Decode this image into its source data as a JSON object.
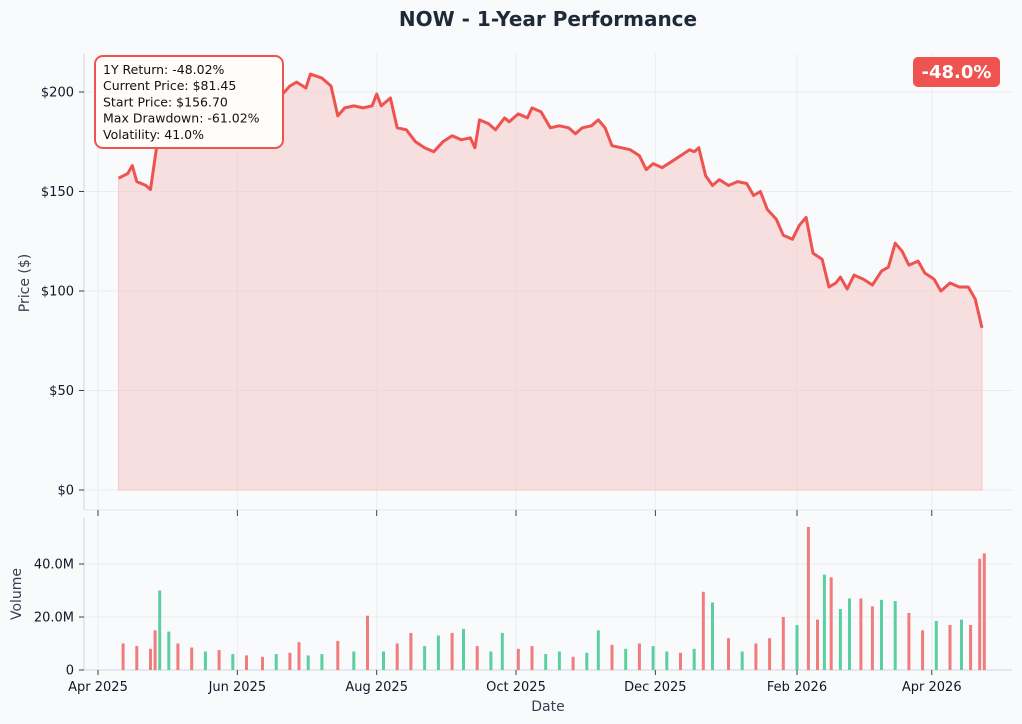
{
  "chart_data": {
    "type": "line",
    "title": "NOW - 1-Year Performance",
    "ylabel": "Price ($)",
    "xlabel": "Date",
    "volume_ylabel": "Volume",
    "price_ylim": [
      0,
      220
    ],
    "price_ticks": [
      0,
      50,
      100,
      150,
      200
    ],
    "price_tick_labels": [
      "$0",
      "$50",
      "$100",
      "$150",
      "$200"
    ],
    "volume_ylim": [
      0,
      55000000
    ],
    "volume_ticks": [
      0,
      20000000,
      40000000
    ],
    "volume_tick_labels": [
      "0",
      "20.0M",
      "40.0M"
    ],
    "x_range": [
      "2025-04-01",
      "2026-04-30"
    ],
    "x_ticks": [
      "2025-04-01",
      "2025-06-01",
      "2025-08-01",
      "2025-10-01",
      "2025-12-01",
      "2026-02-01",
      "2026-04-01"
    ],
    "x_tick_labels": [
      "Apr 2025",
      "Jun 2025",
      "Aug 2025",
      "Oct 2025",
      "Dec 2025",
      "Feb 2026",
      "Apr 2026"
    ],
    "grid": true,
    "colors": {
      "line": "#ef5350",
      "fill": "#f5c6c6",
      "up_volume": "#5ccfa0",
      "down_volume": "#f07c7c",
      "badge": "#ef5350"
    },
    "stats": [
      "1Y Return: -48.02%",
      "Current Price: $81.45",
      "Start Price: $156.70",
      "Max Drawdown: -61.02%",
      "Volatility: 41.0%"
    ],
    "badge": "-48.0%",
    "price_series": [
      {
        "date": "2025-04-10",
        "value": 156.7
      },
      {
        "date": "2025-04-14",
        "value": 159
      },
      {
        "date": "2025-04-16",
        "value": 163
      },
      {
        "date": "2025-04-18",
        "value": 155
      },
      {
        "date": "2025-04-22",
        "value": 153
      },
      {
        "date": "2025-04-24",
        "value": 151
      },
      {
        "date": "2025-04-27",
        "value": 175
      },
      {
        "date": "2025-05-01",
        "value": 186
      },
      {
        "date": "2025-05-05",
        "value": 190
      },
      {
        "date": "2025-05-08",
        "value": 196
      },
      {
        "date": "2025-05-12",
        "value": 200
      },
      {
        "date": "2025-05-15",
        "value": 202
      },
      {
        "date": "2025-05-19",
        "value": 203
      },
      {
        "date": "2025-05-22",
        "value": 201
      },
      {
        "date": "2025-05-26",
        "value": 205
      },
      {
        "date": "2025-05-30",
        "value": 206
      },
      {
        "date": "2025-06-03",
        "value": 203
      },
      {
        "date": "2025-06-07",
        "value": 198
      },
      {
        "date": "2025-06-10",
        "value": 202
      },
      {
        "date": "2025-06-12",
        "value": 199
      },
      {
        "date": "2025-06-16",
        "value": 196
      },
      {
        "date": "2025-06-20",
        "value": 198
      },
      {
        "date": "2025-06-24",
        "value": 203
      },
      {
        "date": "2025-06-27",
        "value": 205
      },
      {
        "date": "2025-07-01",
        "value": 202
      },
      {
        "date": "2025-07-03",
        "value": 209
      },
      {
        "date": "2025-07-08",
        "value": 207
      },
      {
        "date": "2025-07-12",
        "value": 203
      },
      {
        "date": "2025-07-15",
        "value": 188
      },
      {
        "date": "2025-07-18",
        "value": 192
      },
      {
        "date": "2025-07-22",
        "value": 193
      },
      {
        "date": "2025-07-26",
        "value": 192
      },
      {
        "date": "2025-07-30",
        "value": 193
      },
      {
        "date": "2025-08-01",
        "value": 199
      },
      {
        "date": "2025-08-03",
        "value": 193
      },
      {
        "date": "2025-08-07",
        "value": 197
      },
      {
        "date": "2025-08-10",
        "value": 182
      },
      {
        "date": "2025-08-14",
        "value": 181
      },
      {
        "date": "2025-08-18",
        "value": 175
      },
      {
        "date": "2025-08-22",
        "value": 172
      },
      {
        "date": "2025-08-26",
        "value": 170
      },
      {
        "date": "2025-08-30",
        "value": 175
      },
      {
        "date": "2025-09-03",
        "value": 178
      },
      {
        "date": "2025-09-07",
        "value": 176
      },
      {
        "date": "2025-09-11",
        "value": 177
      },
      {
        "date": "2025-09-13",
        "value": 172
      },
      {
        "date": "2025-09-15",
        "value": 186
      },
      {
        "date": "2025-09-19",
        "value": 184
      },
      {
        "date": "2025-09-22",
        "value": 181
      },
      {
        "date": "2025-09-26",
        "value": 187
      },
      {
        "date": "2025-09-28",
        "value": 185
      },
      {
        "date": "2025-10-02",
        "value": 189
      },
      {
        "date": "2025-10-06",
        "value": 187
      },
      {
        "date": "2025-10-08",
        "value": 192
      },
      {
        "date": "2025-10-12",
        "value": 190
      },
      {
        "date": "2025-10-16",
        "value": 182
      },
      {
        "date": "2025-10-20",
        "value": 183
      },
      {
        "date": "2025-10-24",
        "value": 182
      },
      {
        "date": "2025-10-27",
        "value": 179
      },
      {
        "date": "2025-10-30",
        "value": 182
      },
      {
        "date": "2025-11-03",
        "value": 183
      },
      {
        "date": "2025-11-06",
        "value": 186
      },
      {
        "date": "2025-11-09",
        "value": 182
      },
      {
        "date": "2025-11-12",
        "value": 173
      },
      {
        "date": "2025-11-16",
        "value": 172
      },
      {
        "date": "2025-11-20",
        "value": 171
      },
      {
        "date": "2025-11-24",
        "value": 168
      },
      {
        "date": "2025-11-27",
        "value": 161
      },
      {
        "date": "2025-11-30",
        "value": 164
      },
      {
        "date": "2025-12-04",
        "value": 162
      },
      {
        "date": "2025-12-08",
        "value": 165
      },
      {
        "date": "2025-12-12",
        "value": 168
      },
      {
        "date": "2025-12-16",
        "value": 171
      },
      {
        "date": "2025-12-18",
        "value": 170
      },
      {
        "date": "2025-12-20",
        "value": 172
      },
      {
        "date": "2025-12-23",
        "value": 158
      },
      {
        "date": "2025-12-26",
        "value": 153
      },
      {
        "date": "2025-12-29",
        "value": 156
      },
      {
        "date": "2026-01-02",
        "value": 153
      },
      {
        "date": "2026-01-06",
        "value": 155
      },
      {
        "date": "2026-01-10",
        "value": 154
      },
      {
        "date": "2026-01-13",
        "value": 148
      },
      {
        "date": "2026-01-16",
        "value": 150
      },
      {
        "date": "2026-01-19",
        "value": 141
      },
      {
        "date": "2026-01-23",
        "value": 136
      },
      {
        "date": "2026-01-26",
        "value": 128
      },
      {
        "date": "2026-01-30",
        "value": 126
      },
      {
        "date": "2026-02-02",
        "value": 133
      },
      {
        "date": "2026-02-05",
        "value": 137
      },
      {
        "date": "2026-02-08",
        "value": 119
      },
      {
        "date": "2026-02-12",
        "value": 116
      },
      {
        "date": "2026-02-15",
        "value": 102
      },
      {
        "date": "2026-02-18",
        "value": 104
      },
      {
        "date": "2026-02-20",
        "value": 107
      },
      {
        "date": "2026-02-23",
        "value": 101
      },
      {
        "date": "2026-02-26",
        "value": 108
      },
      {
        "date": "2026-03-02",
        "value": 106
      },
      {
        "date": "2026-03-06",
        "value": 103
      },
      {
        "date": "2026-03-10",
        "value": 110
      },
      {
        "date": "2026-03-13",
        "value": 112
      },
      {
        "date": "2026-03-16",
        "value": 124
      },
      {
        "date": "2026-03-19",
        "value": 120
      },
      {
        "date": "2026-03-22",
        "value": 113
      },
      {
        "date": "2026-03-26",
        "value": 115
      },
      {
        "date": "2026-03-29",
        "value": 109
      },
      {
        "date": "2026-04-02",
        "value": 106
      },
      {
        "date": "2026-04-05",
        "value": 100
      },
      {
        "date": "2026-04-09",
        "value": 104
      },
      {
        "date": "2026-04-13",
        "value": 102
      },
      {
        "date": "2026-04-17",
        "value": 102
      },
      {
        "date": "2026-04-20",
        "value": 96
      },
      {
        "date": "2026-04-23",
        "value": 81.45
      }
    ],
    "volume_series": [
      {
        "date": "2025-04-12",
        "value": 10000000,
        "dir": "down"
      },
      {
        "date": "2025-04-18",
        "value": 9000000,
        "dir": "down"
      },
      {
        "date": "2025-04-24",
        "value": 8000000,
        "dir": "down"
      },
      {
        "date": "2025-04-26",
        "value": 15000000,
        "dir": "down"
      },
      {
        "date": "2025-04-28",
        "value": 30000000,
        "dir": "up"
      },
      {
        "date": "2025-05-02",
        "value": 14500000,
        "dir": "up"
      },
      {
        "date": "2025-05-06",
        "value": 10000000,
        "dir": "down"
      },
      {
        "date": "2025-05-12",
        "value": 8500000,
        "dir": "down"
      },
      {
        "date": "2025-05-18",
        "value": 7000000,
        "dir": "up"
      },
      {
        "date": "2025-05-24",
        "value": 7500000,
        "dir": "down"
      },
      {
        "date": "2025-05-30",
        "value": 6000000,
        "dir": "up"
      },
      {
        "date": "2025-06-05",
        "value": 5500000,
        "dir": "down"
      },
      {
        "date": "2025-06-12",
        "value": 5000000,
        "dir": "down"
      },
      {
        "date": "2025-06-18",
        "value": 6000000,
        "dir": "up"
      },
      {
        "date": "2025-06-24",
        "value": 6500000,
        "dir": "down"
      },
      {
        "date": "2025-06-28",
        "value": 10500000,
        "dir": "down"
      },
      {
        "date": "2025-07-02",
        "value": 5500000,
        "dir": "up"
      },
      {
        "date": "2025-07-08",
        "value": 6000000,
        "dir": "up"
      },
      {
        "date": "2025-07-15",
        "value": 11000000,
        "dir": "down"
      },
      {
        "date": "2025-07-22",
        "value": 7000000,
        "dir": "up"
      },
      {
        "date": "2025-07-28",
        "value": 20500000,
        "dir": "down"
      },
      {
        "date": "2025-08-04",
        "value": 7000000,
        "dir": "up"
      },
      {
        "date": "2025-08-10",
        "value": 10000000,
        "dir": "down"
      },
      {
        "date": "2025-08-16",
        "value": 14000000,
        "dir": "down"
      },
      {
        "date": "2025-08-22",
        "value": 9000000,
        "dir": "up"
      },
      {
        "date": "2025-08-28",
        "value": 13000000,
        "dir": "up"
      },
      {
        "date": "2025-09-03",
        "value": 14000000,
        "dir": "down"
      },
      {
        "date": "2025-09-08",
        "value": 15500000,
        "dir": "up"
      },
      {
        "date": "2025-09-14",
        "value": 9000000,
        "dir": "down"
      },
      {
        "date": "2025-09-20",
        "value": 7000000,
        "dir": "up"
      },
      {
        "date": "2025-09-25",
        "value": 14000000,
        "dir": "up"
      },
      {
        "date": "2025-10-02",
        "value": 8000000,
        "dir": "down"
      },
      {
        "date": "2025-10-08",
        "value": 9000000,
        "dir": "down"
      },
      {
        "date": "2025-10-14",
        "value": 6000000,
        "dir": "up"
      },
      {
        "date": "2025-10-20",
        "value": 7000000,
        "dir": "up"
      },
      {
        "date": "2025-10-26",
        "value": 5000000,
        "dir": "down"
      },
      {
        "date": "2025-11-01",
        "value": 6500000,
        "dir": "up"
      },
      {
        "date": "2025-11-06",
        "value": 15000000,
        "dir": "up"
      },
      {
        "date": "2025-11-12",
        "value": 9500000,
        "dir": "down"
      },
      {
        "date": "2025-11-18",
        "value": 8000000,
        "dir": "up"
      },
      {
        "date": "2025-11-24",
        "value": 10000000,
        "dir": "down"
      },
      {
        "date": "2025-11-30",
        "value": 9000000,
        "dir": "up"
      },
      {
        "date": "2025-12-06",
        "value": 7000000,
        "dir": "up"
      },
      {
        "date": "2025-12-12",
        "value": 6500000,
        "dir": "down"
      },
      {
        "date": "2025-12-18",
        "value": 8000000,
        "dir": "up"
      },
      {
        "date": "2025-12-22",
        "value": 29500000,
        "dir": "down"
      },
      {
        "date": "2025-12-26",
        "value": 25500000,
        "dir": "up"
      },
      {
        "date": "2026-01-02",
        "value": 12000000,
        "dir": "down"
      },
      {
        "date": "2026-01-08",
        "value": 7000000,
        "dir": "up"
      },
      {
        "date": "2026-01-14",
        "value": 10000000,
        "dir": "down"
      },
      {
        "date": "2026-01-20",
        "value": 12000000,
        "dir": "down"
      },
      {
        "date": "2026-01-26",
        "value": 20000000,
        "dir": "down"
      },
      {
        "date": "2026-02-01",
        "value": 17000000,
        "dir": "up"
      },
      {
        "date": "2026-02-06",
        "value": 54000000,
        "dir": "down"
      },
      {
        "date": "2026-02-10",
        "value": 19000000,
        "dir": "down"
      },
      {
        "date": "2026-02-13",
        "value": 36000000,
        "dir": "up"
      },
      {
        "date": "2026-02-16",
        "value": 35000000,
        "dir": "down"
      },
      {
        "date": "2026-02-20",
        "value": 23000000,
        "dir": "up"
      },
      {
        "date": "2026-02-24",
        "value": 27000000,
        "dir": "up"
      },
      {
        "date": "2026-03-01",
        "value": 27000000,
        "dir": "down"
      },
      {
        "date": "2026-03-06",
        "value": 24000000,
        "dir": "down"
      },
      {
        "date": "2026-03-10",
        "value": 26500000,
        "dir": "up"
      },
      {
        "date": "2026-03-16",
        "value": 26000000,
        "dir": "up"
      },
      {
        "date": "2026-03-22",
        "value": 21500000,
        "dir": "down"
      },
      {
        "date": "2026-03-28",
        "value": 15000000,
        "dir": "down"
      },
      {
        "date": "2026-04-03",
        "value": 18500000,
        "dir": "up"
      },
      {
        "date": "2026-04-09",
        "value": 17000000,
        "dir": "down"
      },
      {
        "date": "2026-04-14",
        "value": 19000000,
        "dir": "up"
      },
      {
        "date": "2026-04-18",
        "value": 17000000,
        "dir": "down"
      },
      {
        "date": "2026-04-22",
        "value": 42000000,
        "dir": "down"
      },
      {
        "date": "2026-04-24",
        "value": 44000000,
        "dir": "down"
      }
    ]
  }
}
